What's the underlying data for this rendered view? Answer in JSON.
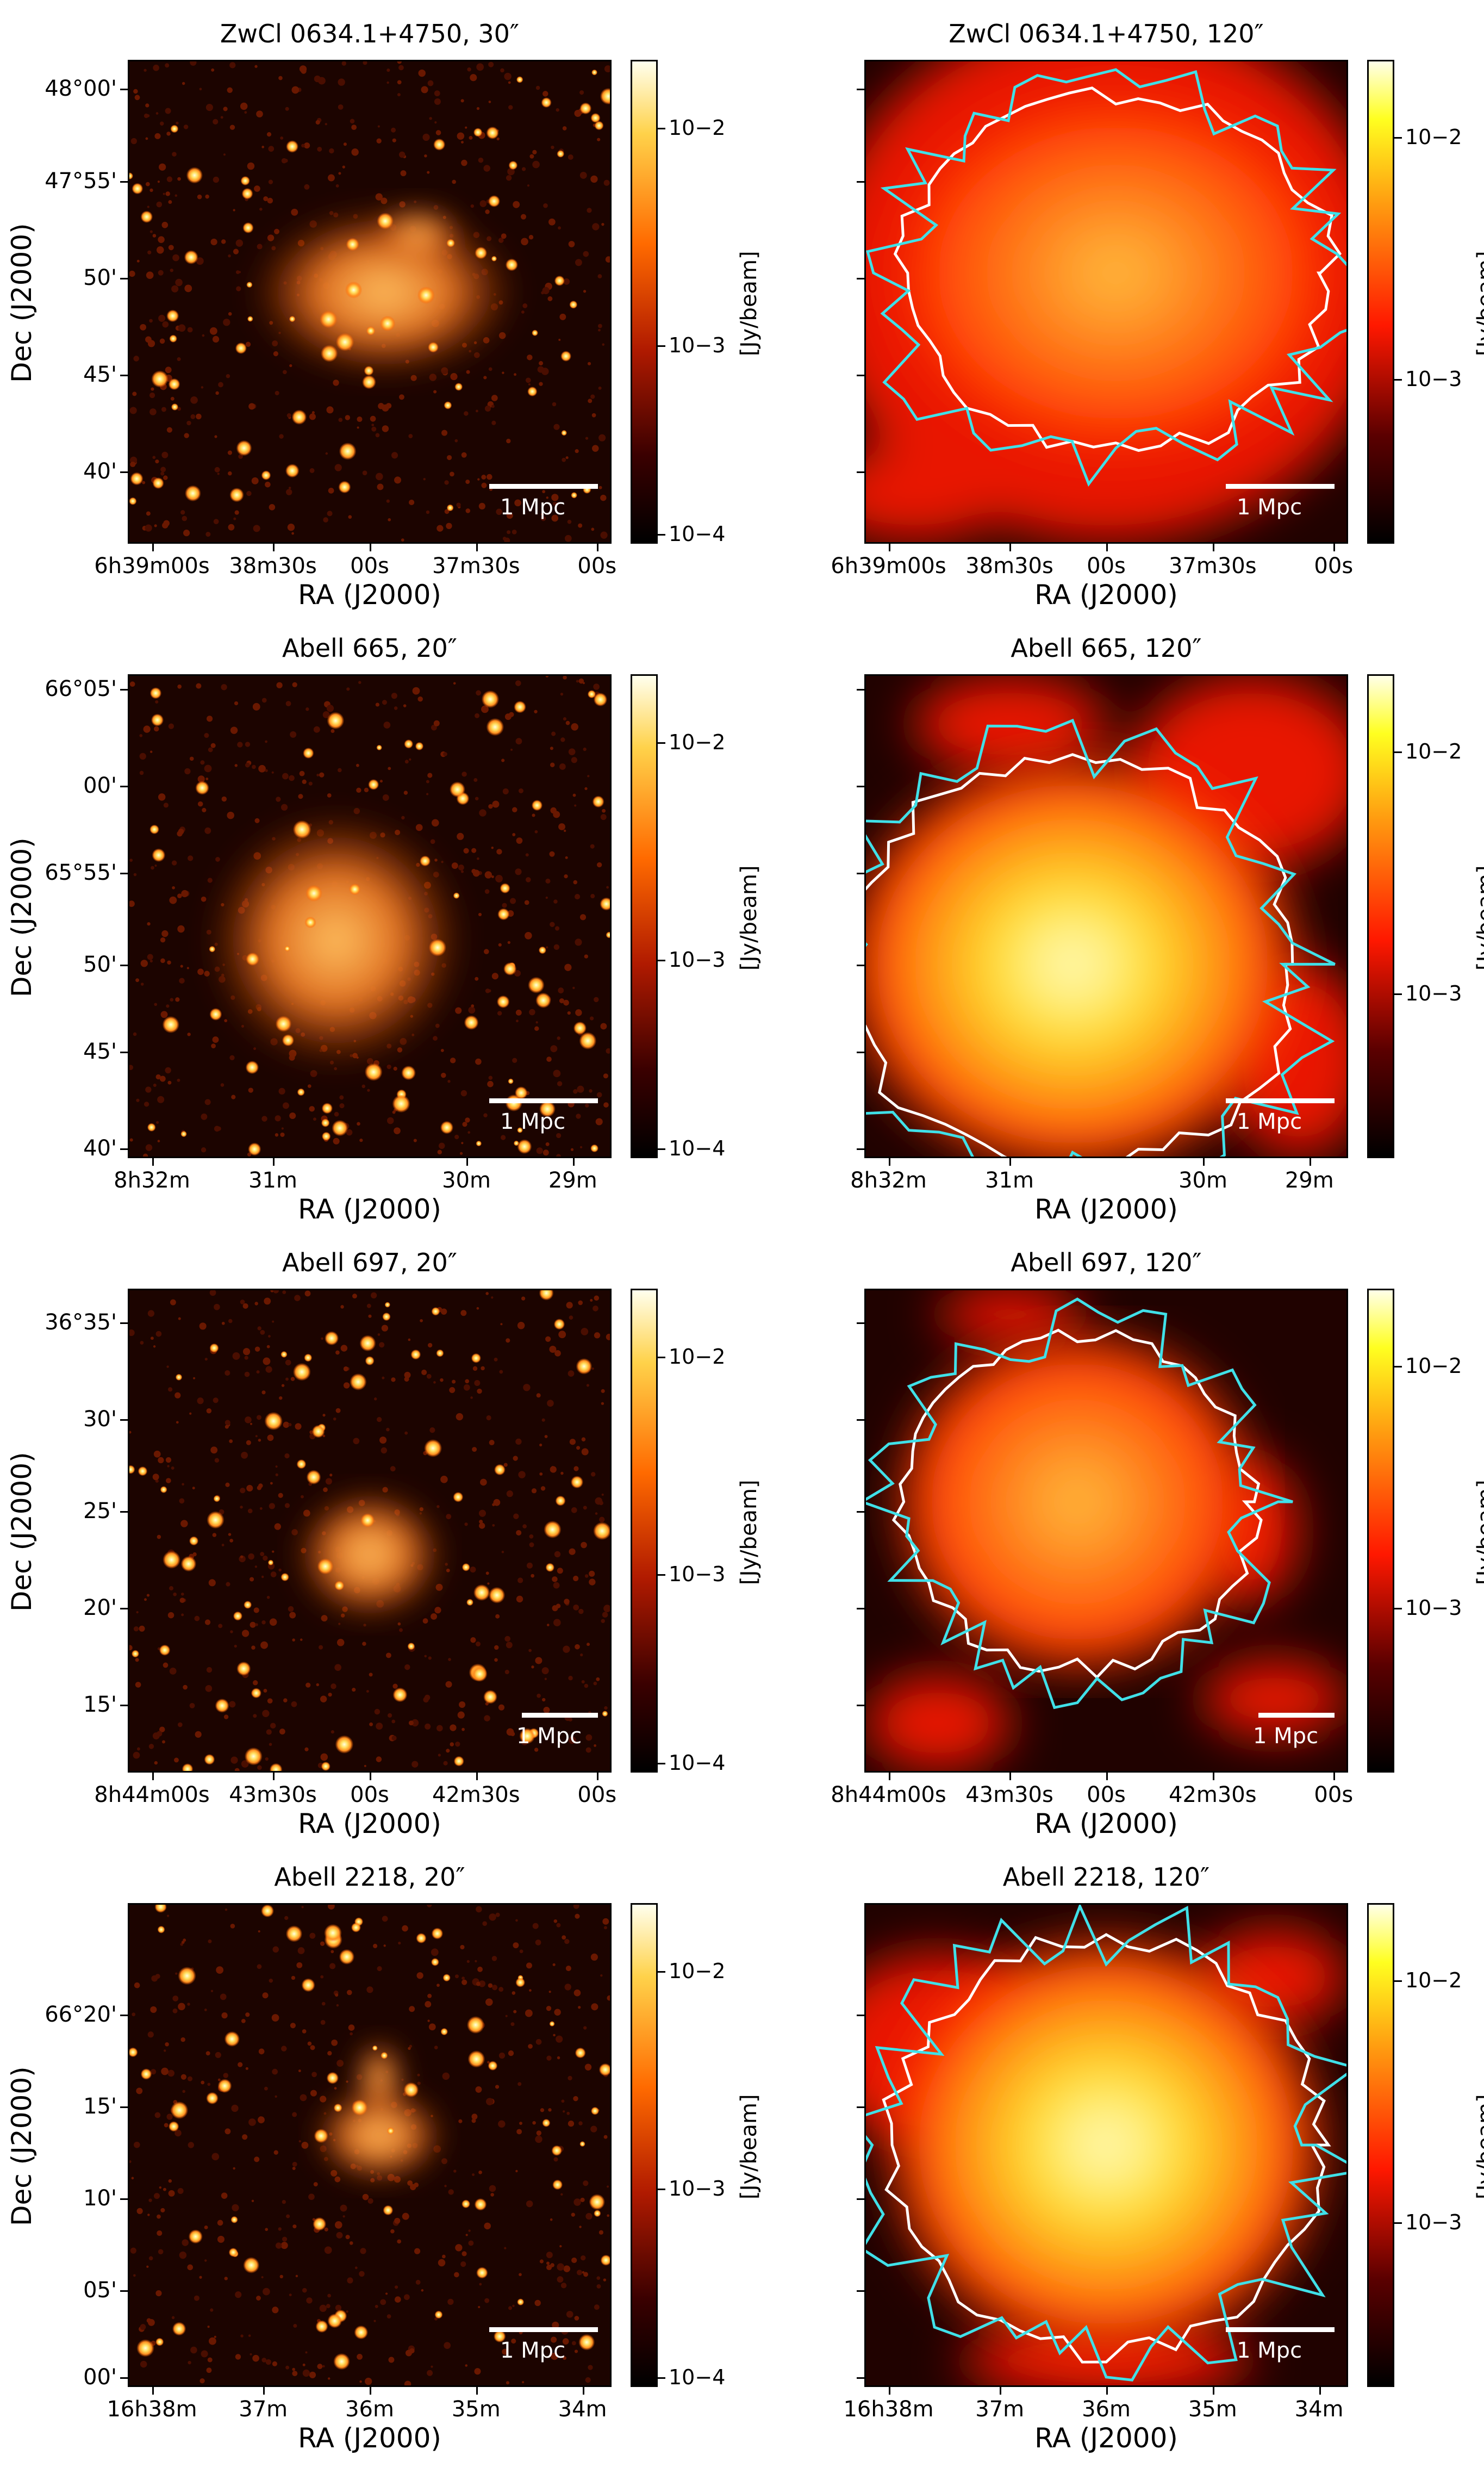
{
  "axis_labels": {
    "ra": "RA (J2000)",
    "dec": "Dec (J2000)",
    "cbar_unit": "[Jy/beam]",
    "scalebar": "1 Mpc"
  },
  "panels": [
    {
      "title": "ZwCl 0634.1+4750, 30″",
      "xticks": [
        "6h39m00s",
        "38m30s",
        "00s",
        "37m30s",
        "00s"
      ],
      "yticks": [
        "48°00'",
        "47°55'",
        "50'",
        "45'",
        "40'"
      ],
      "cbar": [
        "10−2",
        "10−3",
        "10−4"
      ]
    },
    {
      "title": "ZwCl 0634.1+4750, 120″",
      "xticks": [
        "6h39m00s",
        "38m30s",
        "00s",
        "37m30s",
        "00s"
      ],
      "yticks": [],
      "cbar": [
        "10−2",
        "10−3"
      ]
    },
    {
      "title": "Abell 665, 20″",
      "xticks": [
        "8h32m",
        "31m",
        "30m",
        "29m"
      ],
      "yticks": [
        "66°05'",
        "00'",
        "65°55'",
        "50'",
        "45'",
        "40'"
      ],
      "cbar": [
        "10−2",
        "10−3",
        "10−4"
      ]
    },
    {
      "title": "Abell 665, 120″",
      "xticks": [
        "8h32m",
        "31m",
        "30m",
        "29m"
      ],
      "yticks": [],
      "cbar": [
        "10−2",
        "10−3"
      ]
    },
    {
      "title": "Abell 697, 20″",
      "xticks": [
        "8h44m00s",
        "43m30s",
        "00s",
        "42m30s",
        "00s"
      ],
      "yticks": [
        "36°35'",
        "30'",
        "25'",
        "20'",
        "15'"
      ],
      "cbar": [
        "10−2",
        "10−3",
        "10−4"
      ]
    },
    {
      "title": "Abell 697, 120″",
      "xticks": [
        "8h44m00s",
        "43m30s",
        "00s",
        "42m30s",
        "00s"
      ],
      "yticks": [],
      "cbar": [
        "10−2",
        "10−3"
      ]
    },
    {
      "title": "Abell 2218, 20″",
      "xticks": [
        "16h38m",
        "37m",
        "36m",
        "35m",
        "34m"
      ],
      "yticks": [
        "66°20'",
        "15'",
        "10'",
        "05'",
        "00'"
      ],
      "cbar": [
        "10−2",
        "10−3",
        "10−4"
      ]
    },
    {
      "title": "Abell 2218, 120″",
      "xticks": [
        "16h38m",
        "37m",
        "36m",
        "35m",
        "34m"
      ],
      "yticks": [],
      "cbar": [
        "10−2",
        "10−3"
      ]
    }
  ]
}
